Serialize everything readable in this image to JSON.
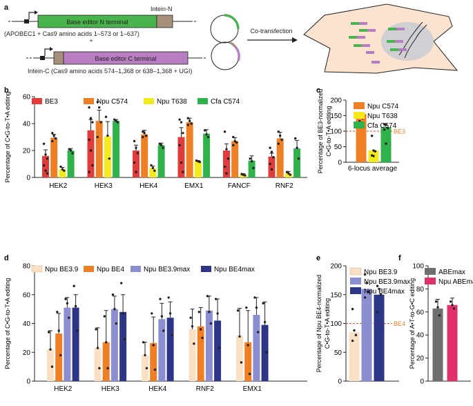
{
  "colors": {
    "red": "#e03c3c",
    "orange": "#ee7f24",
    "yellow": "#f2ea1c",
    "green": "#2fb24a",
    "peach": "#f9dfc4",
    "lavender": "#8b8fd1",
    "navy": "#2d3686",
    "grey": "#6e6e6e",
    "magenta": "#e0306a",
    "constN": "#49b34d",
    "constC": "#b67ec0",
    "intein": "#a79079",
    "cellFill": "#fbe3cf",
    "nucleus": "#cfcfd4"
  },
  "panel_a": {
    "label": "a",
    "box1_text": "Base editor N terminal",
    "intein_n": "Intein-N",
    "caption1": "(APOBEC1 + Cas9 amino acids 1–573 or 1–637)",
    "plus": "+",
    "box2_text": "Base editor C terminal",
    "caption2": "Intein-C (Cas9 amino acids 574–1,368 or 638–1,368 + UGI)",
    "arrow_label": "Co-transfection"
  },
  "chart_data": [
    {
      "panel": "b",
      "type": "bar",
      "ylabel": "Percentage of C•G-to-T•A editing",
      "ylim": [
        0,
        60
      ],
      "yticks": [
        0,
        20,
        40,
        60
      ],
      "categories": [
        "HEK2",
        "HEK3",
        "HEK4",
        "EMX1",
        "FANCF",
        "RNF2"
      ],
      "series": [
        {
          "name": "BE3",
          "color": "red",
          "values": [
            16,
            35,
            20,
            30,
            20,
            15.5
          ],
          "errors": [
            4.5,
            8,
            4,
            7,
            5,
            2.5
          ],
          "points": [
            [
              25,
              17,
              14,
              9,
              5,
              3
            ],
            [
              52,
              44,
              41,
              28,
              20,
              9,
              4
            ],
            [
              27,
              22,
              18,
              11,
              4
            ],
            [
              43,
              41,
              33,
              24,
              11,
              4
            ],
            [
              34,
              21,
              14,
              8,
              3
            ],
            [
              22,
              19,
              15,
              10,
              6
            ]
          ]
        },
        {
          "name": "Npu C574",
          "color": "orange",
          "values": [
            29.5,
            42,
            32,
            41,
            27,
            29
          ],
          "errors": [
            2.5,
            8,
            3,
            3,
            2.5,
            4.5
          ],
          "points": [
            [
              33,
              31,
              29,
              27
            ],
            [
              56,
              52,
              41,
              30
            ],
            [
              34,
              33,
              31,
              30
            ],
            [
              44,
              42,
              40,
              39
            ],
            [
              30,
              27,
              26,
              24
            ],
            [
              34,
              31,
              28,
              25
            ]
          ]
        },
        {
          "name": "Npu T638",
          "color": "yellow",
          "values": [
            6,
            30.5,
            7,
            12,
            2,
            3
          ],
          "errors": [
            1.5,
            11,
            1.5,
            0.5,
            0.8,
            1.5
          ],
          "points": [
            [
              8,
              6,
              5
            ],
            [
              45,
              31,
              14
            ],
            [
              9,
              7,
              5
            ],
            [
              12.5,
              12,
              11.5
            ],
            [
              2.5,
              2,
              1.5
            ],
            [
              4,
              3,
              2
            ]
          ]
        },
        {
          "name": "Cfa C574",
          "color": "green",
          "values": [
            20,
            42,
            24,
            32.5,
            12.5,
            21.5
          ],
          "errors": [
            1.5,
            1,
            1.5,
            3,
            3.5,
            6
          ],
          "points": [
            [
              21,
              20,
              18
            ],
            [
              43,
              42,
              41
            ],
            [
              25,
              24,
              22
            ],
            [
              35,
              32,
              30
            ],
            [
              14,
              12,
              7
            ],
            [
              29,
              22,
              14
            ]
          ]
        }
      ]
    },
    {
      "panel": "c",
      "type": "bar",
      "ylabel": "Percentage of BE3-normalized C•G-to-T•A editing",
      "ylim": [
        0,
        200
      ],
      "yticks": [
        0,
        50,
        100,
        150,
        200
      ],
      "categories": [
        "6-locus average"
      ],
      "reference": {
        "value": 100,
        "label": "BE3"
      },
      "series": [
        {
          "name": "Npu C574",
          "color": "orange",
          "values": [
            155
          ],
          "points": [
            [
              187,
              180,
              142,
              132,
              128,
              122
            ]
          ]
        },
        {
          "name": "Npu T638",
          "color": "yellow",
          "values": [
            38
          ],
          "points": [
            [
              85,
              38,
              35,
              22,
              20
            ]
          ]
        },
        {
          "name": "Cfa C574",
          "color": "green",
          "values": [
            113
          ],
          "points": [
            [
              122,
              120,
              110,
              105,
              60
            ]
          ]
        }
      ]
    },
    {
      "panel": "d",
      "type": "bar",
      "ylabel": "Percentage of C•G-to-T•A editing",
      "ylim": [
        0,
        80
      ],
      "yticks": [
        0,
        20,
        40,
        60,
        80
      ],
      "categories": [
        "HEK2",
        "HEK3",
        "HEK4",
        "RNF2",
        "EMX1"
      ],
      "series": [
        {
          "name": "Npu BE3.9",
          "color": "peach",
          "values": [
            22,
            23,
            18,
            36,
            31.5
          ],
          "errors": [
            13,
            14,
            9,
            14,
            19
          ],
          "points": [
            [
              34,
              22,
              10
            ],
            [
              36,
              23,
              9
            ],
            [
              27,
              18,
              9
            ],
            [
              44,
              38,
              26
            ],
            [
              49,
              31,
              13
            ]
          ]
        },
        {
          "name": "Npu BE4",
          "color": "orange",
          "values": [
            33,
            27,
            26.5,
            38,
            27
          ],
          "errors": [
            14,
            22,
            18,
            13,
            22
          ],
          "points": [
            [
              48,
              35,
              18
            ],
            [
              45,
              27,
              9
            ],
            [
              47,
              25,
              8
            ],
            [
              48,
              36,
              30
            ],
            [
              51,
              25,
              5
            ]
          ]
        },
        {
          "name": "Npu BE3.9max",
          "color": "lavender",
          "values": [
            51,
            50,
            43,
            49,
            46
          ],
          "errors": [
            7,
            9,
            11,
            10,
            12
          ],
          "points": [
            [
              57,
              54,
              44
            ],
            [
              60,
              50,
              40
            ],
            [
              57,
              45,
              35
            ],
            [
              59,
              48,
              40
            ],
            [
              58,
              51,
              34
            ]
          ]
        },
        {
          "name": "Npu BE4max",
          "color": "navy",
          "values": [
            51,
            48,
            44,
            42,
            39
          ],
          "errors": [
            9,
            12,
            11,
            15,
            16
          ],
          "points": [
            [
              66,
              52,
              35
            ],
            [
              68,
              47,
              29
            ],
            [
              58,
              47,
              32
            ],
            [
              57,
              47,
              23
            ],
            [
              54,
              41,
              20
            ]
          ]
        }
      ]
    },
    {
      "panel": "e",
      "type": "bar",
      "ylabel": "Percentage of Npu BE4-normalized C•G-to-T•A editing",
      "ylim": [
        0,
        200
      ],
      "yticks": [
        0,
        50,
        100,
        150,
        200
      ],
      "categories": [
        ""
      ],
      "reference": {
        "value": 100,
        "label": "BE4"
      },
      "series": [
        {
          "name": "Npu BE3.9",
          "color": "peach",
          "values": [
            85
          ],
          "points": [
            [
              125,
              88,
              80,
              70
            ]
          ]
        },
        {
          "name": "Npu BE3.9max",
          "color": "lavender",
          "values": [
            160
          ],
          "points": [
            [
              185,
              170,
              155,
              145
            ]
          ]
        },
        {
          "name": "Npu BE4max",
          "color": "navy",
          "values": [
            150
          ],
          "points": [
            [
              165,
              160,
              150,
              120
            ]
          ]
        }
      ]
    },
    {
      "panel": "f",
      "type": "bar",
      "ylabel": "Percentage of A•T-to-G•C editing",
      "ylim": [
        0,
        100
      ],
      "yticks": [
        0,
        20,
        40,
        60,
        80,
        100
      ],
      "categories": [
        ""
      ],
      "series": [
        {
          "name": "ABEmax",
          "color": "grey",
          "values": [
            63
          ],
          "errors": [
            8
          ],
          "points": [
            [
              69,
              64,
              57
            ]
          ]
        },
        {
          "name": "Npu ABEmax",
          "color": "magenta",
          "values": [
            66
          ],
          "errors": [
            6
          ],
          "points": [
            [
              69,
              66,
              63
            ]
          ]
        }
      ]
    }
  ]
}
